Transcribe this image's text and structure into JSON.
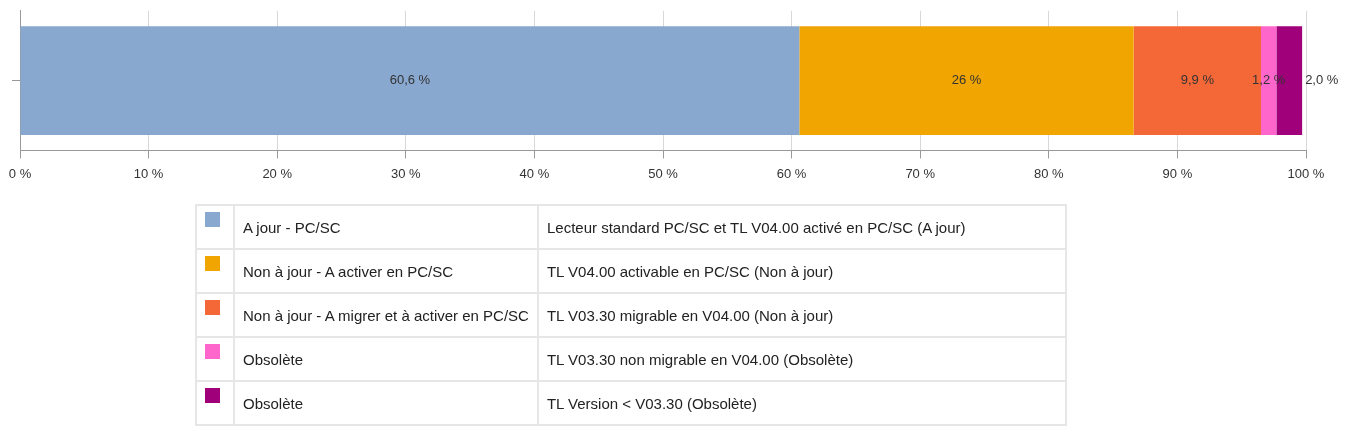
{
  "chart_data": {
    "type": "bar",
    "orientation": "horizontal",
    "stacked": true,
    "categories": [
      null
    ],
    "series": [
      {
        "name": "A jour - PC/SC",
        "color": "#88a8d0",
        "values": [
          60.6
        ],
        "value_labels": [
          "60,6 %"
        ]
      },
      {
        "name": "Non à jour - A activer en PC/SC",
        "color": "#f0a500",
        "values": [
          26
        ],
        "value_labels": [
          "26 %"
        ]
      },
      {
        "name": "Non à jour - A migrer et à activer en PC/SC",
        "color": "#f46838",
        "values": [
          9.9
        ],
        "value_labels": [
          "9,9 %"
        ]
      },
      {
        "name": "Obsolète",
        "color": "#ff66cc",
        "values": [
          1.2
        ],
        "value_labels": [
          "1,2 %"
        ]
      },
      {
        "name": "Obsolète",
        "color": "#a0007a",
        "values": [
          2.0
        ],
        "value_labels": [
          "2,0 %"
        ]
      }
    ],
    "xlim": [
      0,
      100
    ],
    "xticks": [
      {
        "value": 0,
        "label": "0 %"
      },
      {
        "value": 10,
        "label": "10 %"
      },
      {
        "value": 20,
        "label": "20 %"
      },
      {
        "value": 30,
        "label": "30 %"
      },
      {
        "value": 40,
        "label": "40 %"
      },
      {
        "value": 50,
        "label": "50 %"
      },
      {
        "value": 60,
        "label": "60 %"
      },
      {
        "value": 70,
        "label": "70 %"
      },
      {
        "value": 80,
        "label": "80 %"
      },
      {
        "value": 90,
        "label": "90 %"
      },
      {
        "value": 100,
        "label": "100 %"
      }
    ],
    "grid": "x",
    "legend": "bottom",
    "annotations": [
      "Lecteur standard PC/SC et TL V04.00 activé en PC/SC (A jour)",
      "TL V04.00 activable en PC/SC (Non à  jour)",
      "TL V03.30 migrable en V04.00 (Non à  jour)",
      "TL V03.30 non migrable en V04.00 (Obsolète)",
      "TL Version < V03.30 (Obsolète)"
    ]
  }
}
